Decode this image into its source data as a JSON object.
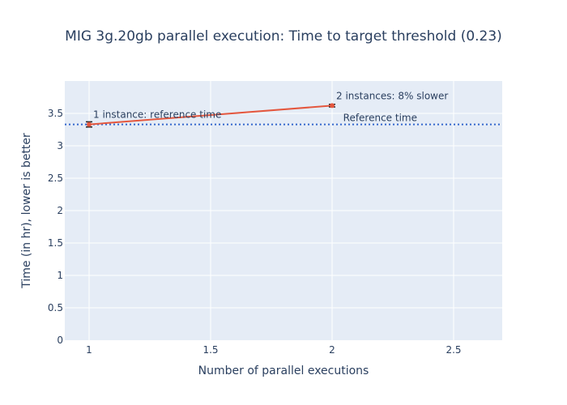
{
  "chart_data": {
    "type": "line",
    "title": "MIG 3g.20gb parallel execution: Time to target threshold (0.23)",
    "xlabel": "Number of parallel executions",
    "ylabel": "Time (in hr), lower is better",
    "xlim": [
      0.9,
      2.7
    ],
    "ylim": [
      0,
      4.0
    ],
    "xticks": [
      1,
      1.5,
      2,
      2.5
    ],
    "xtick_labels": [
      "1",
      "1.5",
      "2",
      "2.5"
    ],
    "yticks": [
      0,
      0.5,
      1,
      1.5,
      2,
      2.5,
      3,
      3.5
    ],
    "ytick_labels": [
      "0",
      "0.5",
      "1",
      "1.5",
      "2",
      "2.5",
      "3",
      "3.5"
    ],
    "grid": true,
    "series": [
      {
        "x": [
          1,
          2
        ],
        "y": [
          3.33,
          3.62
        ],
        "error": [
          0.04,
          0.02
        ],
        "color": "#e4573e"
      }
    ],
    "reference_line": {
      "y": 3.33,
      "label": "Reference time",
      "label_x": 2.35,
      "color": "#3366cc"
    },
    "annotations": [
      {
        "x": 1,
        "y": 3.33,
        "text": "1 instance: reference time"
      },
      {
        "x": 2,
        "y": 3.62,
        "text": "2 instances: 8% slower"
      }
    ],
    "colors": {
      "plot_bg": "#e5ecf6",
      "grid": "#ffffff",
      "text": "#2a3f5f"
    }
  }
}
